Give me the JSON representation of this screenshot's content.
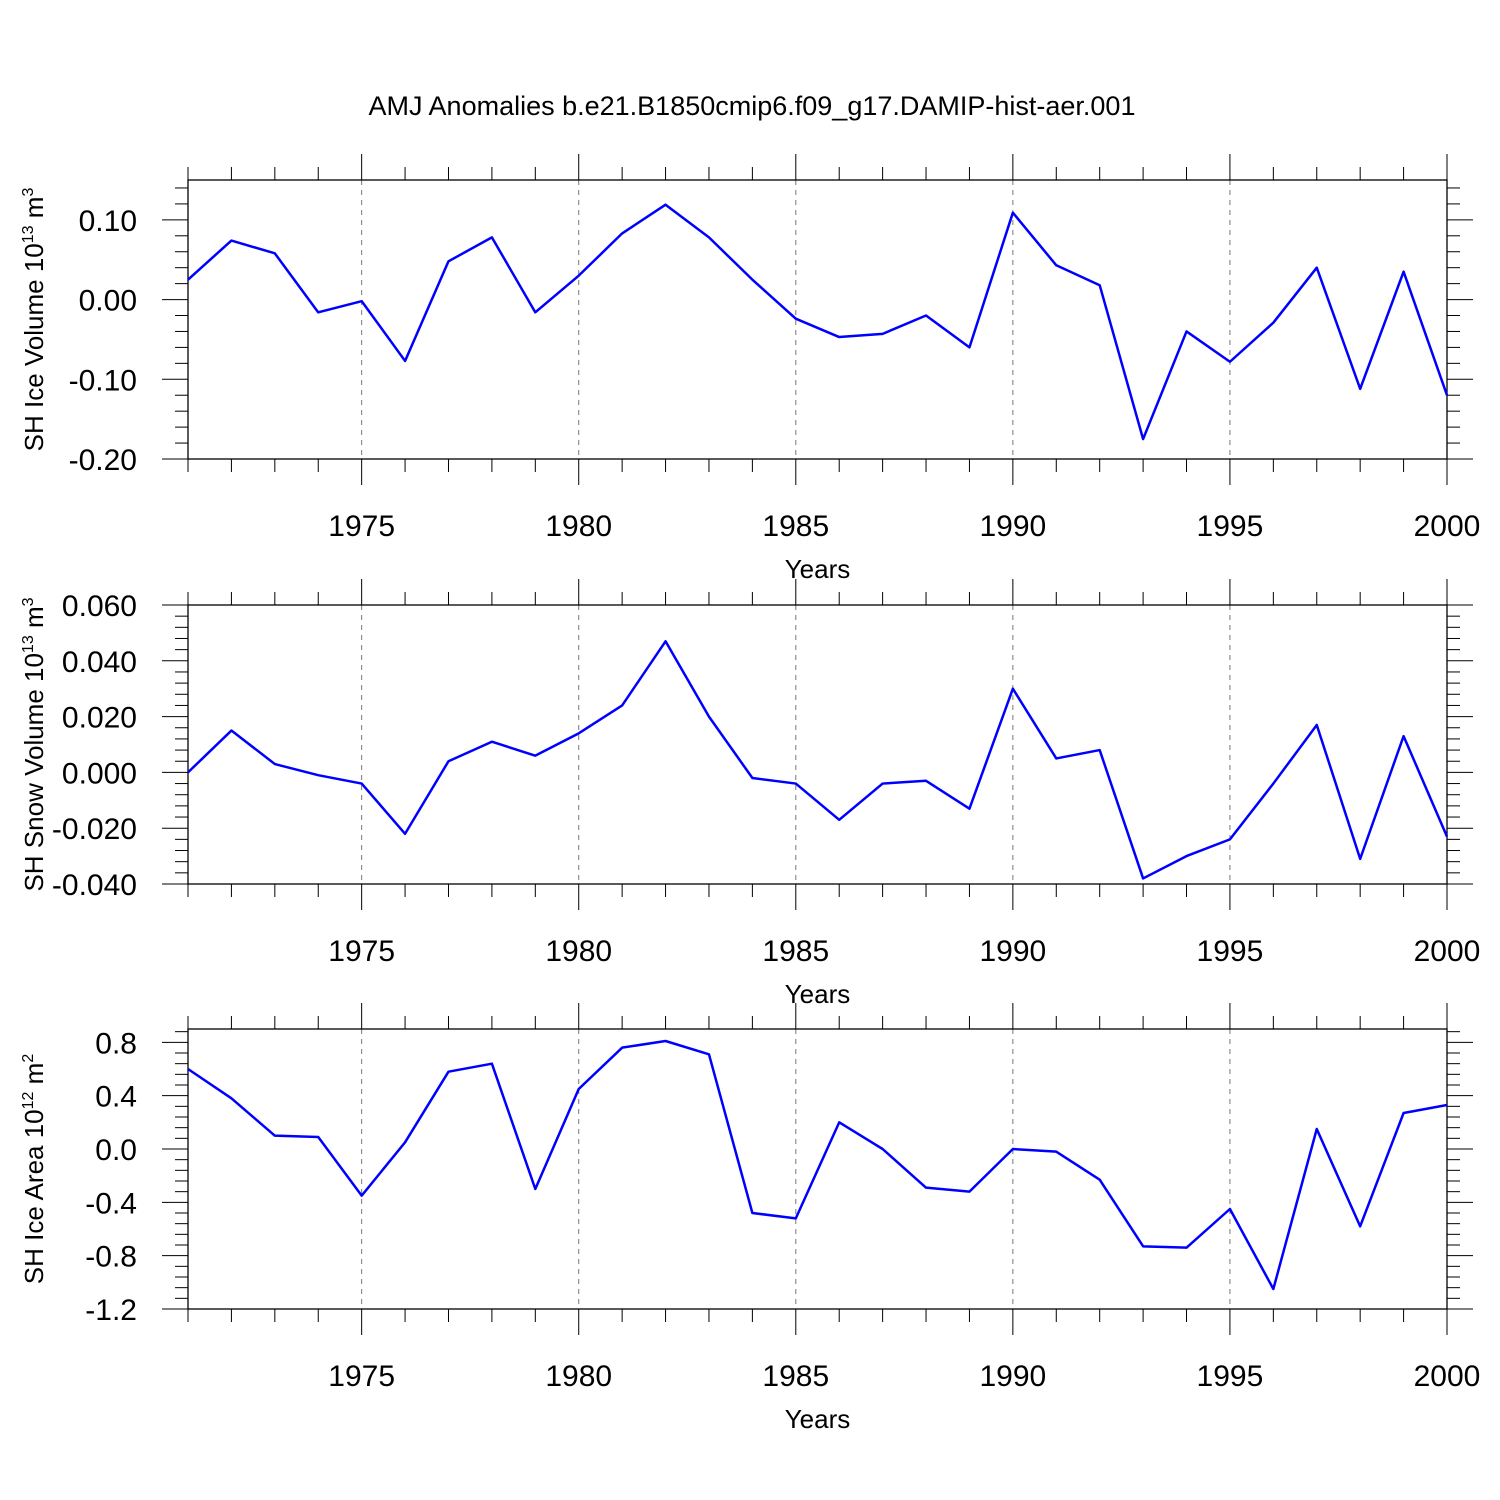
{
  "title": "AMJ Anomalies b.e21.B1850cmip6.f09_g17.DAMIP-hist-aer.001",
  "line_color": "#0000ff",
  "chart_data": [
    {
      "type": "line",
      "title": "AMJ Anomalies b.e21.B1850cmip6.f09_g17.DAMIP-hist-aer.001",
      "xlabel": "Years",
      "ylabel": "SH Ice Volume 10",
      "ylabel_exp": "13",
      "ylabel_unit": " m",
      "ylabel_unit_exp": "3",
      "xlim": [
        1971,
        2000
      ],
      "ylim": [
        -0.2,
        0.15
      ],
      "grid": "vertical-dashed",
      "x_ticks": [
        1975,
        1980,
        1985,
        1990,
        1995,
        2000
      ],
      "x_tick_labels": [
        "1975",
        "1980",
        "1985",
        "1990",
        "1995",
        "2000"
      ],
      "y_ticks": [
        0.1,
        0.0,
        -0.1,
        -0.2
      ],
      "y_tick_labels": [
        "0.10",
        "0.00",
        "-0.10",
        "-0.20"
      ],
      "x": [
        1971,
        1972,
        1973,
        1974,
        1975,
        1976,
        1977,
        1978,
        1979,
        1980,
        1981,
        1982,
        1983,
        1984,
        1985,
        1986,
        1987,
        1988,
        1989,
        1990,
        1991,
        1992,
        1993,
        1994,
        1995,
        1996,
        1997,
        1998,
        1999,
        2000
      ],
      "series": [
        {
          "name": "SH Ice Volume",
          "values": [
            0.025,
            0.074,
            0.058,
            -0.016,
            -0.002,
            -0.077,
            0.048,
            0.078,
            -0.016,
            0.03,
            0.083,
            0.119,
            0.078,
            0.025,
            -0.024,
            -0.047,
            -0.043,
            -0.02,
            -0.06,
            0.109,
            0.043,
            0.018,
            -0.175,
            -0.04,
            -0.078,
            -0.029,
            0.04,
            -0.112,
            0.035,
            -0.12
          ]
        }
      ]
    },
    {
      "type": "line",
      "xlabel": "Years",
      "ylabel": "SH Snow Volume 10",
      "ylabel_exp": "13",
      "ylabel_unit": " m",
      "ylabel_unit_exp": "3",
      "xlim": [
        1971,
        2000
      ],
      "ylim": [
        -0.04,
        0.06
      ],
      "grid": "vertical-dashed",
      "x_ticks": [
        1975,
        1980,
        1985,
        1990,
        1995,
        2000
      ],
      "x_tick_labels": [
        "1975",
        "1980",
        "1985",
        "1990",
        "1995",
        "2000"
      ],
      "y_ticks": [
        0.06,
        0.04,
        0.02,
        0.0,
        -0.02,
        -0.04
      ],
      "y_tick_labels": [
        "0.060",
        "0.040",
        "0.020",
        "0.000",
        "-0.020",
        "-0.040"
      ],
      "x": [
        1971,
        1972,
        1973,
        1974,
        1975,
        1976,
        1977,
        1978,
        1979,
        1980,
        1981,
        1982,
        1983,
        1984,
        1985,
        1986,
        1987,
        1988,
        1989,
        1990,
        1991,
        1992,
        1993,
        1994,
        1995,
        1996,
        1997,
        1998,
        1999,
        2000
      ],
      "series": [
        {
          "name": "SH Snow Volume",
          "values": [
            0.0,
            0.015,
            0.003,
            -0.001,
            -0.004,
            -0.022,
            0.004,
            0.011,
            0.006,
            0.014,
            0.024,
            0.047,
            0.02,
            -0.002,
            -0.004,
            -0.017,
            -0.004,
            -0.003,
            -0.013,
            0.03,
            0.005,
            0.008,
            -0.038,
            -0.03,
            -0.024,
            -0.004,
            0.017,
            -0.031,
            0.013,
            -0.023
          ]
        }
      ]
    },
    {
      "type": "line",
      "xlabel": "Years",
      "ylabel": "SH Ice Area 10",
      "ylabel_exp": "12",
      "ylabel_unit": " m",
      "ylabel_unit_exp": "2",
      "xlim": [
        1971,
        2000
      ],
      "ylim": [
        -1.2,
        0.9
      ],
      "grid": "vertical-dashed",
      "x_ticks": [
        1975,
        1980,
        1985,
        1990,
        1995,
        2000
      ],
      "x_tick_labels": [
        "1975",
        "1980",
        "1985",
        "1990",
        "1995",
        "2000"
      ],
      "y_ticks": [
        0.8,
        0.4,
        0.0,
        -0.4,
        -0.8,
        -1.2
      ],
      "y_tick_labels": [
        "0.8",
        "0.4",
        "0.0",
        "-0.4",
        "-0.8",
        "-1.2"
      ],
      "x": [
        1971,
        1972,
        1973,
        1974,
        1975,
        1976,
        1977,
        1978,
        1979,
        1980,
        1981,
        1982,
        1983,
        1984,
        1985,
        1986,
        1987,
        1988,
        1989,
        1990,
        1991,
        1992,
        1993,
        1994,
        1995,
        1996,
        1997,
        1998,
        1999,
        2000
      ],
      "series": [
        {
          "name": "SH Ice Area",
          "values": [
            0.6,
            0.38,
            0.1,
            0.09,
            -0.35,
            0.05,
            0.58,
            0.64,
            -0.3,
            0.45,
            0.76,
            0.81,
            0.71,
            -0.48,
            -0.52,
            0.2,
            0.0,
            -0.29,
            -0.32,
            0.0,
            -0.02,
            -0.23,
            -0.73,
            -0.74,
            -0.45,
            -1.05,
            0.15,
            -0.58,
            0.27,
            0.33
          ]
        }
      ]
    }
  ]
}
